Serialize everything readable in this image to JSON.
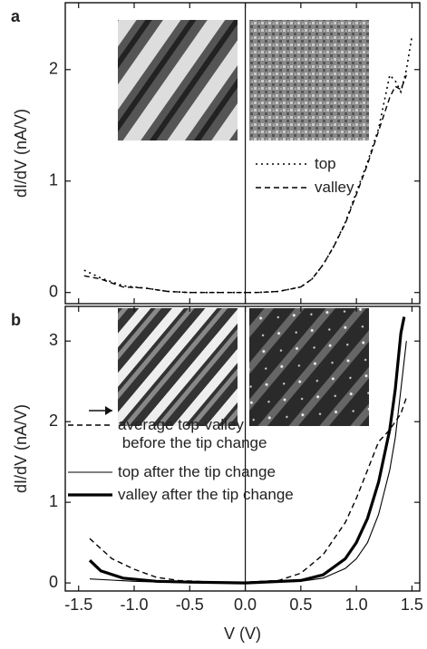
{
  "chart_data": [
    {
      "type": "line",
      "panel_label": "a",
      "ylabel": "dI/dV (nA/V)",
      "show_xtick_labels": false,
      "vline": 0,
      "xlim": [
        -1.62,
        1.57
      ],
      "ylim": [
        -0.1,
        2.6
      ],
      "xticks": [
        -1.5,
        {
          "value": -1,
          "label": "-1.0"
        },
        -0.5,
        {
          "value": 0,
          "label": "0.0"
        },
        0.5,
        {
          "value": 1,
          "label": "1.0"
        },
        1.5
      ],
      "yticks": [
        0,
        1,
        2
      ],
      "series": [
        {
          "name": "top",
          "color": "#000",
          "dash": "dotted",
          "width": 1.6,
          "x": [
            -1.45,
            -1.3,
            -1.1,
            -0.9,
            -0.7,
            -0.5,
            -0.3,
            -0.1,
            0.1,
            0.3,
            0.5,
            0.6,
            0.7,
            0.8,
            0.9,
            1.0,
            1.1,
            1.2,
            1.3,
            1.35,
            1.4,
            1.45,
            1.5
          ],
          "values": [
            0.2,
            0.13,
            0.06,
            0.04,
            0.01,
            0.0,
            0.0,
            0.0,
            0.0,
            0.01,
            0.05,
            0.12,
            0.25,
            0.42,
            0.63,
            0.9,
            1.17,
            1.47,
            1.95,
            1.9,
            1.8,
            2.0,
            2.3
          ]
        },
        {
          "name": "valley",
          "color": "#000",
          "dash": "dashed",
          "width": 1.4,
          "x": [
            -1.45,
            -1.3,
            -1.1,
            -0.9,
            -0.7,
            -0.5,
            -0.3,
            -0.1,
            0.1,
            0.3,
            0.5,
            0.6,
            0.7,
            0.8,
            0.9,
            1.0,
            1.1,
            1.2,
            1.3,
            1.35,
            1.4,
            1.45
          ],
          "values": [
            0.15,
            0.12,
            0.05,
            0.04,
            0.01,
            0.0,
            0.0,
            0.0,
            0.0,
            0.01,
            0.05,
            0.12,
            0.25,
            0.42,
            0.62,
            0.88,
            1.15,
            1.45,
            1.75,
            1.85,
            1.82,
            1.95
          ]
        }
      ]
    },
    {
      "type": "line",
      "panel_label": "b",
      "ylabel": "dI/dV (nA/V)",
      "xlabel": "V (V)",
      "show_xtick_labels": true,
      "vline": 0,
      "xlim": [
        -1.62,
        1.57
      ],
      "ylim": [
        -0.1,
        3.43
      ],
      "xticks": [
        -1.5,
        {
          "value": -1,
          "label": "-1.0"
        },
        -0.5,
        {
          "value": 0,
          "label": "0.0"
        },
        0.5,
        {
          "value": 1,
          "label": "1.0"
        },
        1.5
      ],
      "yticks": [
        0,
        1,
        2,
        3
      ],
      "series": [
        {
          "name": "average top-valley\n before the tip change",
          "color": "#000",
          "dash": "dashed",
          "width": 1.4,
          "x": [
            -1.4,
            -1.2,
            -1.0,
            -0.8,
            -0.6,
            -0.3,
            0.0,
            0.3,
            0.5,
            0.7,
            0.9,
            1.0,
            1.1,
            1.2,
            1.3,
            1.4,
            1.45
          ],
          "values": [
            0.55,
            0.3,
            0.17,
            0.07,
            0.03,
            0.01,
            0.01,
            0.03,
            0.12,
            0.35,
            0.75,
            1.05,
            1.4,
            1.75,
            1.9,
            2.1,
            2.3
          ]
        },
        {
          "name": "top after the tip change",
          "color": "#000",
          "dash": "solid",
          "width": 1.1,
          "x": [
            -1.4,
            -1.0,
            -0.5,
            0.0,
            0.5,
            0.7,
            0.9,
            1.0,
            1.1,
            1.2,
            1.3,
            1.35,
            1.4,
            1.45
          ],
          "values": [
            0.05,
            0.02,
            0.0,
            0.0,
            0.02,
            0.06,
            0.18,
            0.3,
            0.5,
            0.85,
            1.4,
            1.8,
            2.4,
            3.0
          ]
        },
        {
          "name": "valley after the tip change",
          "color": "#000",
          "dash": "solid",
          "width": 3.2,
          "x": [
            -1.4,
            -1.3,
            -1.1,
            -0.8,
            -0.5,
            0.0,
            0.5,
            0.7,
            0.9,
            1.0,
            1.1,
            1.2,
            1.3,
            1.35,
            1.4,
            1.43
          ],
          "values": [
            0.28,
            0.15,
            0.06,
            0.02,
            0.01,
            0.0,
            0.03,
            0.1,
            0.3,
            0.5,
            0.8,
            1.25,
            1.9,
            2.4,
            3.1,
            3.3
          ]
        }
      ]
    }
  ]
}
